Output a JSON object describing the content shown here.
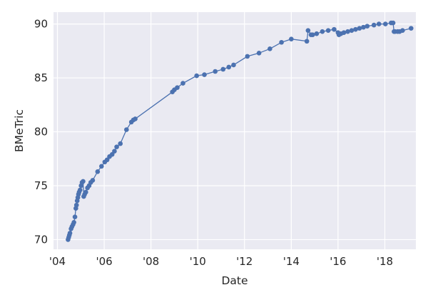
{
  "chart_data": {
    "type": "line",
    "xlabel": "Date",
    "ylabel": "BMeTric",
    "xlim": [
      "2003-11-01",
      "2019-05-01"
    ],
    "ylim": [
      69.1,
      91.1
    ],
    "grid": true,
    "x_ticks": [
      {
        "date": "2004-01-01",
        "label": "'04"
      },
      {
        "date": "2006-01-01",
        "label": "'06"
      },
      {
        "date": "2008-01-01",
        "label": "'08"
      },
      {
        "date": "2010-01-01",
        "label": "'10"
      },
      {
        "date": "2012-01-01",
        "label": "'12"
      },
      {
        "date": "2014-01-01",
        "label": "'14"
      },
      {
        "date": "2016-01-01",
        "label": "'16"
      },
      {
        "date": "2018-01-01",
        "label": "'18"
      }
    ],
    "y_ticks": [
      70,
      75,
      80,
      85,
      90
    ],
    "colors": {
      "series": "#4c72b0",
      "plot_background": "#eaeaf2",
      "grid": "#ffffff"
    },
    "series": [
      {
        "points": [
          [
            "2004-06-15",
            70.0
          ],
          [
            "2004-06-25",
            70.2
          ],
          [
            "2004-07-05",
            70.4
          ],
          [
            "2004-07-15",
            70.6
          ],
          [
            "2004-08-01",
            71.0
          ],
          [
            "2004-08-15",
            71.2
          ],
          [
            "2004-09-01",
            71.4
          ],
          [
            "2004-09-15",
            71.6
          ],
          [
            "2004-10-01",
            72.1
          ],
          [
            "2004-10-15",
            72.9
          ],
          [
            "2004-10-25",
            73.2
          ],
          [
            "2004-11-05",
            73.6
          ],
          [
            "2004-11-15",
            73.9
          ],
          [
            "2004-11-25",
            74.2
          ],
          [
            "2004-12-05",
            74.4
          ],
          [
            "2004-12-20",
            74.6
          ],
          [
            "2005-01-05",
            75.0
          ],
          [
            "2005-01-20",
            75.3
          ],
          [
            "2005-02-05",
            75.4
          ],
          [
            "2005-02-15",
            74.0
          ],
          [
            "2005-03-01",
            74.2
          ],
          [
            "2005-03-20",
            74.4
          ],
          [
            "2005-04-15",
            74.8
          ],
          [
            "2005-05-10",
            75.0
          ],
          [
            "2005-06-05",
            75.3
          ],
          [
            "2005-07-05",
            75.5
          ],
          [
            "2005-09-20",
            76.3
          ],
          [
            "2005-11-20",
            76.8
          ],
          [
            "2006-01-10",
            77.2
          ],
          [
            "2006-02-15",
            77.4
          ],
          [
            "2006-03-25",
            77.7
          ],
          [
            "2006-05-05",
            77.9
          ],
          [
            "2006-06-10",
            78.2
          ],
          [
            "2006-07-15",
            78.6
          ],
          [
            "2006-09-10",
            78.9
          ],
          [
            "2006-12-15",
            80.2
          ],
          [
            "2007-03-01",
            80.9
          ],
          [
            "2007-04-01",
            81.1
          ],
          [
            "2007-05-01",
            81.2
          ],
          [
            "2008-12-01",
            83.7
          ],
          [
            "2009-01-01",
            83.9
          ],
          [
            "2009-02-15",
            84.1
          ],
          [
            "2009-05-15",
            84.5
          ],
          [
            "2009-12-15",
            85.2
          ],
          [
            "2010-04-15",
            85.3
          ],
          [
            "2010-10-01",
            85.6
          ],
          [
            "2011-02-01",
            85.8
          ],
          [
            "2011-05-01",
            86.0
          ],
          [
            "2011-07-15",
            86.2
          ],
          [
            "2012-02-15",
            87.0
          ],
          [
            "2012-08-15",
            87.3
          ],
          [
            "2013-02-01",
            87.7
          ],
          [
            "2013-08-01",
            88.3
          ],
          [
            "2014-01-01",
            88.6
          ],
          [
            "2014-09-01",
            88.4
          ],
          [
            "2014-09-20",
            89.4
          ],
          [
            "2014-11-05",
            89.0
          ],
          [
            "2014-12-01",
            89.0
          ],
          [
            "2015-02-01",
            89.1
          ],
          [
            "2015-05-01",
            89.3
          ],
          [
            "2015-08-01",
            89.4
          ],
          [
            "2015-11-01",
            89.5
          ],
          [
            "2016-01-01",
            89.2
          ],
          [
            "2016-01-15",
            89.0
          ],
          [
            "2016-02-15",
            89.1
          ],
          [
            "2016-04-01",
            89.2
          ],
          [
            "2016-06-01",
            89.3
          ],
          [
            "2016-08-01",
            89.4
          ],
          [
            "2016-10-01",
            89.5
          ],
          [
            "2016-12-01",
            89.6
          ],
          [
            "2017-02-01",
            89.7
          ],
          [
            "2017-04-01",
            89.8
          ],
          [
            "2017-07-15",
            89.9
          ],
          [
            "2017-10-01",
            90.0
          ],
          [
            "2018-01-10",
            90.0
          ],
          [
            "2018-04-10",
            90.1
          ],
          [
            "2018-05-10",
            90.1
          ],
          [
            "2018-05-25",
            89.3
          ],
          [
            "2018-06-10",
            89.3
          ],
          [
            "2018-07-20",
            89.3
          ],
          [
            "2018-08-20",
            89.3
          ],
          [
            "2018-10-05",
            89.4
          ],
          [
            "2019-02-15",
            89.6
          ]
        ]
      }
    ]
  }
}
